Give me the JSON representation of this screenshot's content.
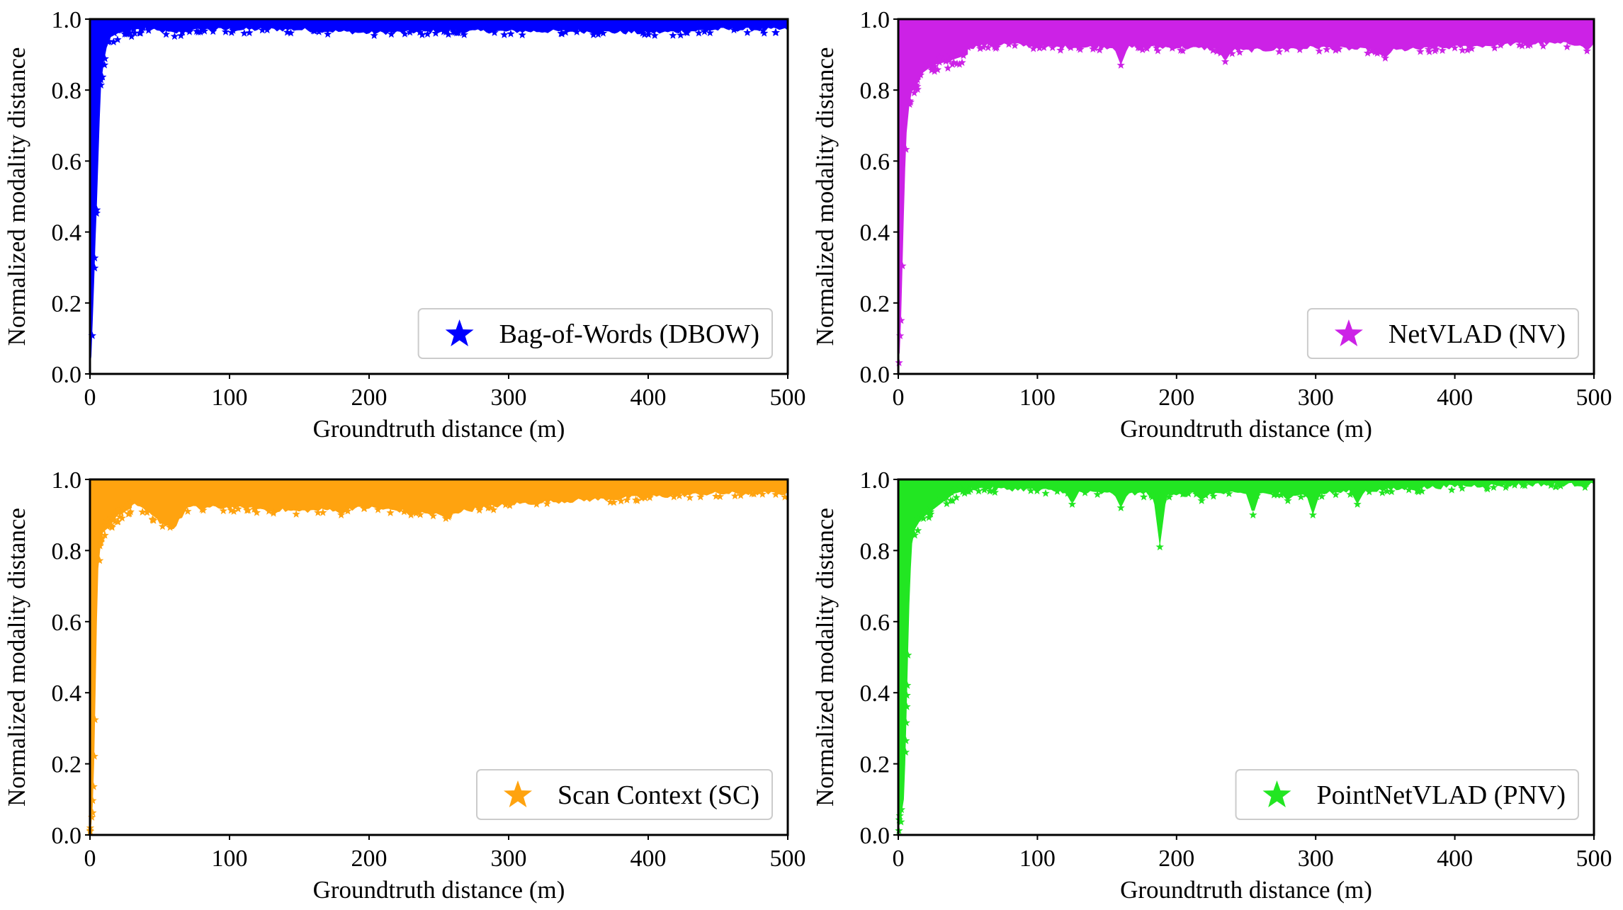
{
  "chart_data": [
    {
      "type": "scatter",
      "series": [
        {
          "name": "Bag-of-Words (DBOW)",
          "color": "#0000ff",
          "marker": "star-icon"
        }
      ],
      "legend_label": "Bag-of-Words (DBOW)",
      "legend_position": "lower-right",
      "xlabel": "Groundtruth distance (m)",
      "ylabel": "Normalized modality distance",
      "xlim": [
        0,
        500
      ],
      "ylim": [
        0,
        1
      ],
      "xticks": [
        "0",
        "100",
        "200",
        "300",
        "400",
        "500"
      ],
      "yticks": [
        "0.0",
        "0.2",
        "0.4",
        "0.6",
        "0.8",
        "1.0"
      ],
      "rise": {
        "x": [
          0,
          1,
          2,
          3,
          4,
          5,
          6,
          7,
          8,
          10,
          12,
          15,
          20,
          30,
          40
        ],
        "y": [
          0.02,
          0.05,
          0.15,
          0.26,
          0.38,
          0.48,
          0.6,
          0.72,
          0.82,
          0.88,
          0.92,
          0.95,
          0.96,
          0.97,
          0.975
        ]
      },
      "lower_envelope": {
        "x": [
          40,
          60,
          80,
          100,
          150,
          200,
          250,
          300,
          350,
          400,
          450,
          500
        ],
        "y": [
          0.97,
          0.96,
          0.97,
          0.97,
          0.97,
          0.96,
          0.965,
          0.965,
          0.965,
          0.96,
          0.97,
          0.97
        ]
      },
      "dips": []
    },
    {
      "type": "scatter",
      "series": [
        {
          "name": "NetVLAD (NV)",
          "color": "#cc22e6",
          "marker": "star-icon"
        }
      ],
      "legend_label": "NetVLAD (NV)",
      "legend_position": "lower-right",
      "xlabel": "Groundtruth distance (m)",
      "ylabel": "Normalized modality distance",
      "xlim": [
        0,
        500
      ],
      "ylim": [
        0,
        1
      ],
      "xticks": [
        "0",
        "100",
        "200",
        "300",
        "400",
        "500"
      ],
      "yticks": [
        "0.0",
        "0.2",
        "0.4",
        "0.6",
        "0.8",
        "1.0"
      ],
      "rise": {
        "x": [
          0,
          1,
          2,
          3,
          4,
          5,
          6,
          8,
          10,
          14,
          18,
          25,
          35,
          50
        ],
        "y": [
          0.04,
          0.06,
          0.15,
          0.3,
          0.45,
          0.58,
          0.68,
          0.76,
          0.8,
          0.82,
          0.85,
          0.87,
          0.88,
          0.9
        ]
      },
      "lower_envelope": {
        "x": [
          50,
          80,
          100,
          150,
          200,
          250,
          300,
          350,
          400,
          450,
          500
        ],
        "y": [
          0.92,
          0.93,
          0.92,
          0.92,
          0.92,
          0.91,
          0.92,
          0.91,
          0.92,
          0.93,
          0.93
        ]
      },
      "dips": [
        {
          "x": 160,
          "y": 0.87
        },
        {
          "x": 235,
          "y": 0.88
        },
        {
          "x": 350,
          "y": 0.89
        },
        {
          "x": 495,
          "y": 0.91
        }
      ]
    },
    {
      "type": "scatter",
      "series": [
        {
          "name": "Scan Context (SC)",
          "color": "#ffa30f",
          "marker": "star-icon"
        }
      ],
      "legend_label": "Scan Context (SC)",
      "legend_position": "lower-right",
      "xlabel": "Groundtruth distance (m)",
      "ylabel": "Normalized modality distance",
      "xlim": [
        0,
        500
      ],
      "ylim": [
        0,
        1
      ],
      "xticks": [
        "0",
        "100",
        "200",
        "300",
        "400",
        "500"
      ],
      "yticks": [
        "0.0",
        "0.2",
        "0.4",
        "0.6",
        "0.8",
        "1.0"
      ],
      "rise": {
        "x": [
          0,
          1,
          2,
          3,
          4,
          5,
          6,
          8,
          10,
          14,
          20,
          30
        ],
        "y": [
          0.01,
          0.03,
          0.08,
          0.2,
          0.4,
          0.6,
          0.75,
          0.83,
          0.86,
          0.87,
          0.9,
          0.92
        ]
      },
      "lower_envelope": {
        "x": [
          30,
          40,
          50,
          60,
          70,
          100,
          150,
          200,
          250,
          300,
          350,
          400,
          450,
          500
        ],
        "y": [
          0.93,
          0.91,
          0.88,
          0.86,
          0.92,
          0.92,
          0.91,
          0.92,
          0.9,
          0.93,
          0.94,
          0.95,
          0.96,
          0.96
        ]
      },
      "dips": [
        {
          "x": 180,
          "y": 0.9
        },
        {
          "x": 230,
          "y": 0.9
        },
        {
          "x": 255,
          "y": 0.89
        },
        {
          "x": 320,
          "y": 0.93
        }
      ]
    },
    {
      "type": "scatter",
      "series": [
        {
          "name": "PointNetVLAD (PNV)",
          "color": "#22e622",
          "marker": "star-icon"
        }
      ],
      "legend_label": "PointNetVLAD (PNV)",
      "legend_position": "lower-right",
      "xlabel": "Groundtruth distance (m)",
      "ylabel": "Normalized modality distance",
      "xlim": [
        0,
        500
      ],
      "ylim": [
        0,
        1
      ],
      "xticks": [
        "0",
        "100",
        "200",
        "300",
        "400",
        "500"
      ],
      "yticks": [
        "0.0",
        "0.2",
        "0.4",
        "0.6",
        "0.8",
        "1.0"
      ],
      "rise": {
        "x": [
          0,
          2,
          4,
          5,
          6,
          7,
          8,
          9,
          10,
          12,
          15,
          20,
          30,
          40,
          50
        ],
        "y": [
          0.02,
          0.05,
          0.1,
          0.2,
          0.35,
          0.5,
          0.65,
          0.75,
          0.82,
          0.86,
          0.88,
          0.9,
          0.93,
          0.96,
          0.97
        ]
      },
      "lower_envelope": {
        "x": [
          50,
          100,
          150,
          200,
          250,
          300,
          350,
          400,
          450,
          500
        ],
        "y": [
          0.975,
          0.97,
          0.96,
          0.96,
          0.96,
          0.96,
          0.97,
          0.98,
          0.985,
          0.985
        ]
      },
      "dips": [
        {
          "x": 125,
          "y": 0.93
        },
        {
          "x": 160,
          "y": 0.92
        },
        {
          "x": 188,
          "y": 0.81
        },
        {
          "x": 218,
          "y": 0.94
        },
        {
          "x": 255,
          "y": 0.9
        },
        {
          "x": 280,
          "y": 0.94
        },
        {
          "x": 298,
          "y": 0.9
        },
        {
          "x": 330,
          "y": 0.93
        }
      ]
    }
  ]
}
